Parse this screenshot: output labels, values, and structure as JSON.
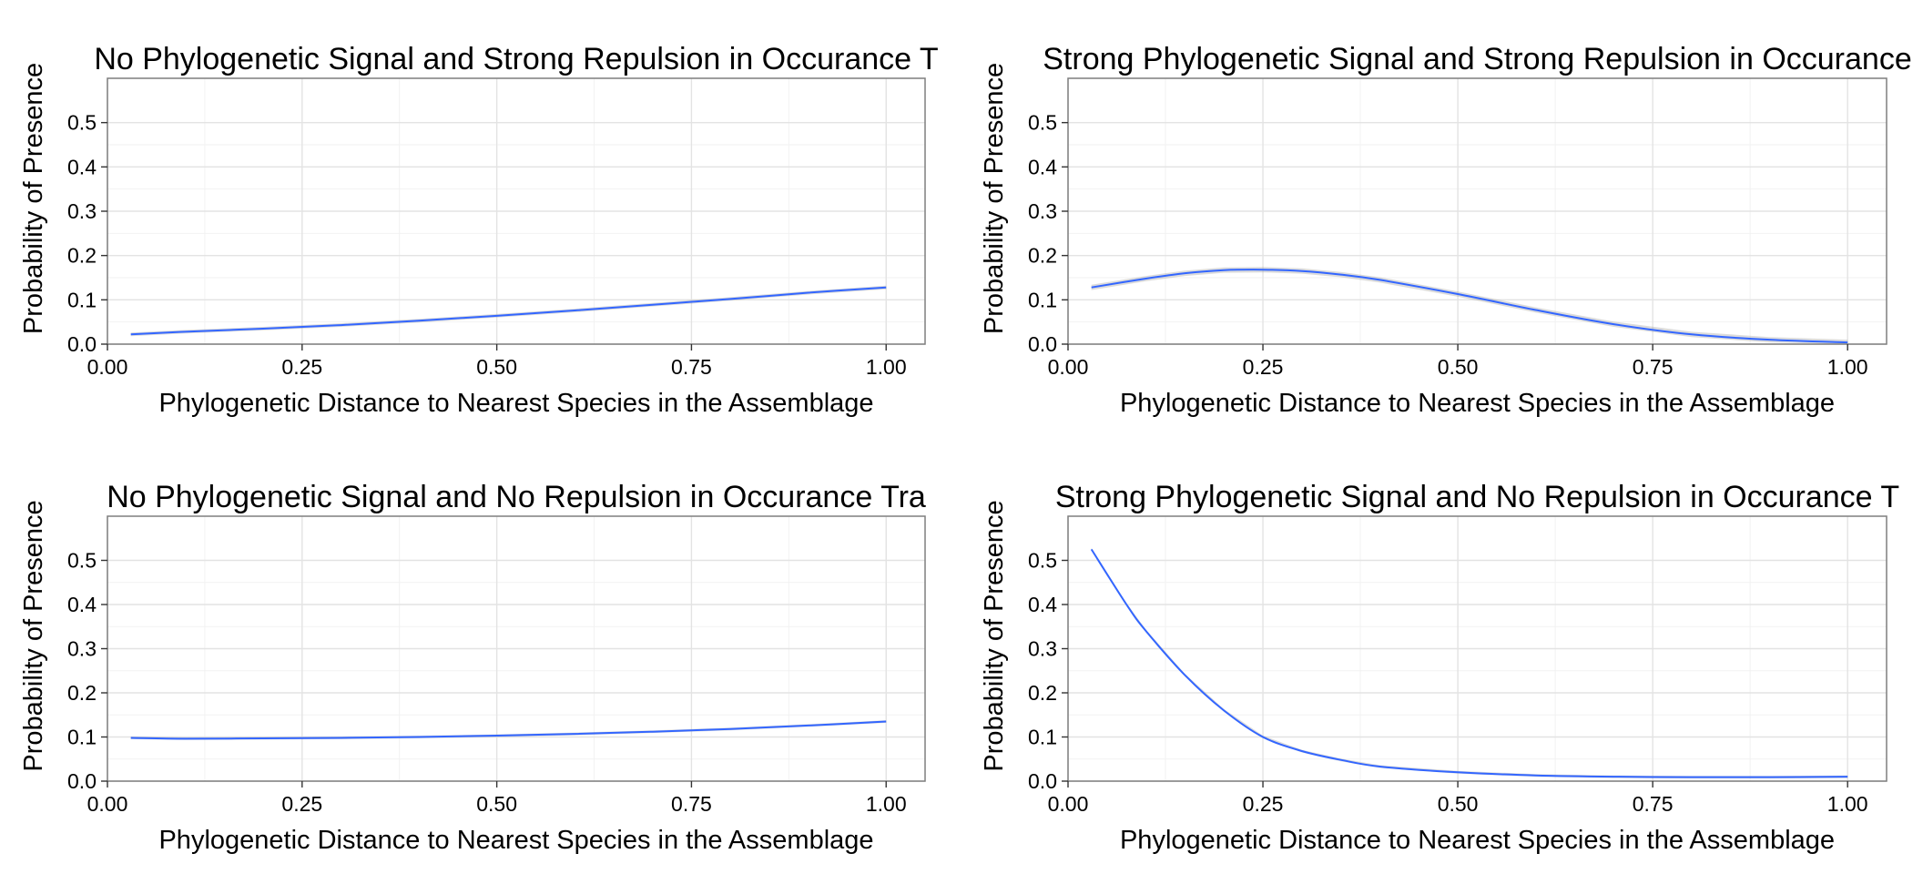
{
  "figure": {
    "colors": {
      "line": "#3366FF",
      "ribbon": "#999999",
      "grid_major": "#E3E3E3",
      "grid_minor": "#F2F2F2",
      "panel_border": "#7F7F7F"
    }
  },
  "chart_data": [
    {
      "type": "line",
      "title": "No Phylogenetic Signal and Strong Repulsion in Occurance T",
      "xlabel": "Phylogenetic Distance to Nearest Species in the Assemblage",
      "ylabel": "Probability of Presence",
      "xlim": [
        0.0,
        1.05
      ],
      "ylim": [
        0.0,
        0.6
      ],
      "xticks": [
        0,
        0.25,
        0.5,
        0.75,
        1
      ],
      "xtick_labels": [
        "0.00",
        "0.25",
        "0.50",
        "0.75",
        "1.00"
      ],
      "yticks": [
        0,
        0.1,
        0.2,
        0.3,
        0.4,
        0.5
      ],
      "ytick_labels": [
        "0.0",
        "0.1",
        "0.2",
        "0.3",
        "0.4",
        "0.5"
      ],
      "grid": true,
      "confidence_band": true,
      "series": [
        {
          "x": [
            0.03,
            0.1,
            0.2,
            0.3,
            0.4,
            0.5,
            0.6,
            0.7,
            0.8,
            0.9,
            1.0
          ],
          "y": [
            0.022,
            0.028,
            0.035,
            0.043,
            0.053,
            0.064,
            0.076,
            0.089,
            0.102,
            0.116,
            0.128
          ],
          "band": 0.004
        }
      ]
    },
    {
      "type": "line",
      "title": "Strong Phylogenetic Signal and Strong Repulsion in Occurance",
      "xlabel": "Phylogenetic Distance to Nearest Species in the Assemblage",
      "ylabel": "Probability of Presence",
      "xlim": [
        0.0,
        1.05
      ],
      "ylim": [
        0.0,
        0.6
      ],
      "xticks": [
        0,
        0.25,
        0.5,
        0.75,
        1
      ],
      "xtick_labels": [
        "0.00",
        "0.25",
        "0.50",
        "0.75",
        "1.00"
      ],
      "yticks": [
        0,
        0.1,
        0.2,
        0.3,
        0.4,
        0.5
      ],
      "ytick_labels": [
        "0.0",
        "0.1",
        "0.2",
        "0.3",
        "0.4",
        "0.5"
      ],
      "grid": true,
      "confidence_band": true,
      "series": [
        {
          "x": [
            0.03,
            0.1,
            0.15,
            0.2,
            0.25,
            0.3,
            0.35,
            0.4,
            0.5,
            0.6,
            0.7,
            0.8,
            0.9,
            1.0
          ],
          "y": [
            0.128,
            0.148,
            0.16,
            0.167,
            0.168,
            0.165,
            0.157,
            0.145,
            0.113,
            0.077,
            0.045,
            0.022,
            0.01,
            0.004
          ],
          "band": 0.006
        }
      ]
    },
    {
      "type": "line",
      "title": "No Phylogenetic Signal and No Repulsion in Occurance Tra",
      "xlabel": "Phylogenetic Distance to Nearest Species in the Assemblage",
      "ylabel": "Probability of Presence",
      "xlim": [
        0.0,
        1.05
      ],
      "ylim": [
        0.0,
        0.6
      ],
      "xticks": [
        0,
        0.25,
        0.5,
        0.75,
        1
      ],
      "xtick_labels": [
        "0.00",
        "0.25",
        "0.50",
        "0.75",
        "1.00"
      ],
      "yticks": [
        0,
        0.1,
        0.2,
        0.3,
        0.4,
        0.5
      ],
      "ytick_labels": [
        "0.0",
        "0.1",
        "0.2",
        "0.3",
        "0.4",
        "0.5"
      ],
      "grid": true,
      "confidence_band": true,
      "series": [
        {
          "x": [
            0.03,
            0.1,
            0.2,
            0.3,
            0.4,
            0.5,
            0.6,
            0.7,
            0.8,
            0.9,
            1.0
          ],
          "y": [
            0.098,
            0.096,
            0.097,
            0.098,
            0.1,
            0.103,
            0.107,
            0.112,
            0.118,
            0.126,
            0.135
          ],
          "band": 0.003
        }
      ]
    },
    {
      "type": "line",
      "title": "Strong Phylogenetic Signal and No Repulsion in Occurance T",
      "xlabel": "Phylogenetic Distance to Nearest Species in the Assemblage",
      "ylabel": "Probability of Presence",
      "xlim": [
        0.0,
        1.05
      ],
      "ylim": [
        0.0,
        0.6
      ],
      "xticks": [
        0,
        0.25,
        0.5,
        0.75,
        1
      ],
      "xtick_labels": [
        "0.00",
        "0.25",
        "0.50",
        "0.75",
        "1.00"
      ],
      "yticks": [
        0,
        0.1,
        0.2,
        0.3,
        0.4,
        0.5
      ],
      "ytick_labels": [
        "0.0",
        "0.1",
        "0.2",
        "0.3",
        "0.4",
        "0.5"
      ],
      "grid": true,
      "confidence_band": true,
      "series": [
        {
          "x": [
            0.03,
            0.075,
            0.1,
            0.15,
            0.2,
            0.25,
            0.3,
            0.35,
            0.4,
            0.5,
            0.6,
            0.7,
            0.8,
            0.9,
            1.0
          ],
          "y": [
            0.525,
            0.4,
            0.34,
            0.24,
            0.16,
            0.1,
            0.068,
            0.048,
            0.033,
            0.02,
            0.013,
            0.01,
            0.009,
            0.009,
            0.01
          ],
          "band": 0.003
        }
      ]
    }
  ]
}
